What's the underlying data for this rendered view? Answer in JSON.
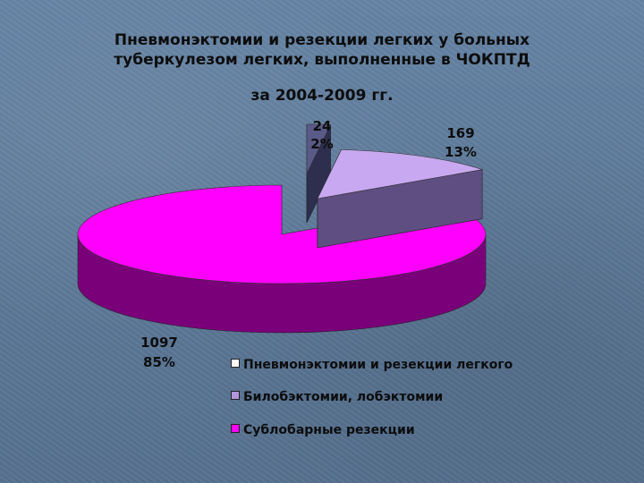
{
  "title": {
    "line1": "Пневмонэктомии и резекции легких у больных",
    "line2": "туберкулезом легких, выполненные в ЧОКПТД",
    "line3": "за 2004-2009 гг."
  },
  "chart_data": {
    "type": "pie",
    "style": "3d-exploded",
    "slices": [
      {
        "label": "Пневмонэктомии и резекции легкого",
        "value": 24,
        "percent": "2%",
        "color": "#5a5a88",
        "side_color": "#2e2e4e"
      },
      {
        "label": "Билобэктомии, лобэктомии",
        "value": 169,
        "percent": "13%",
        "color": "#c8a8f0",
        "side_color": "#5e4e82"
      },
      {
        "label": "Сублобарные резекции",
        "value": 1097,
        "percent": "85%",
        "color": "#ff00ff",
        "side_color": "#7a007a"
      }
    ],
    "legend_position": "bottom-right"
  },
  "legend_colors": [
    "#ffffff",
    "#b496dc",
    "#ff00ff"
  ]
}
